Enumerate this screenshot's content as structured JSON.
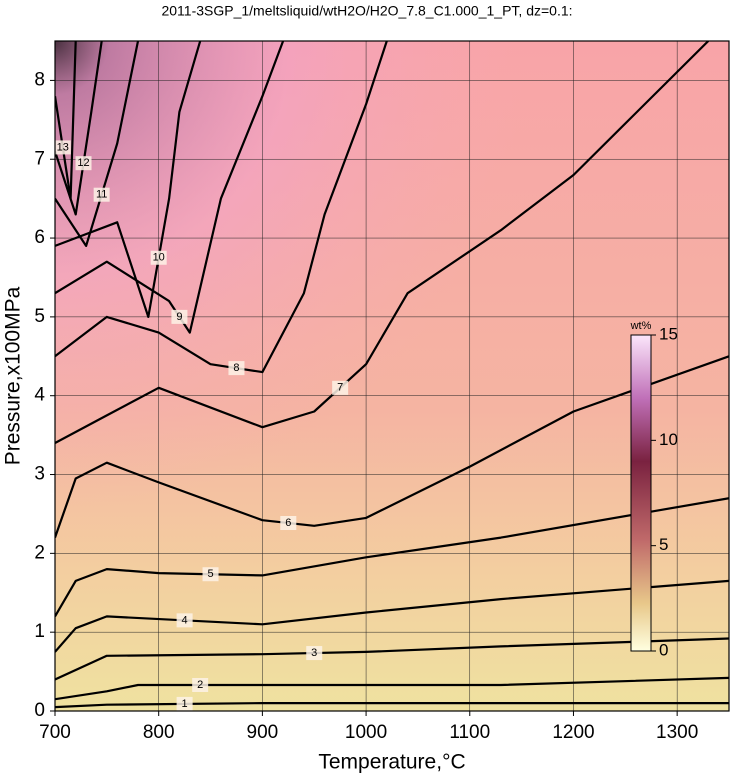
{
  "chart_data": {
    "type": "contour",
    "title": "2011-3SGP_1/meltsliquid/wtH2O/H2O_7.8_C1.000_1_PT, dz=0.1:",
    "x_label": "Temperature,°C",
    "y_label": "Pressure,x100MPa",
    "xlim": [
      700,
      1350
    ],
    "ylim": [
      0,
      8.5
    ],
    "xticks": [
      700,
      800,
      900,
      1000,
      1100,
      1200,
      1300
    ],
    "yticks": [
      0,
      1,
      2,
      3,
      4,
      5,
      6,
      7,
      8
    ],
    "grid": true,
    "color": "#000000",
    "colorbar": {
      "label": "wt%",
      "lim": [
        0,
        15
      ],
      "ticks": [
        0,
        5,
        10,
        15
      ]
    },
    "series": [
      {
        "name": "1",
        "x": [
          700,
          750,
          900,
          1130,
          1350
        ],
        "y": [
          0.05,
          0.08,
          0.1,
          0.1,
          0.1
        ]
      },
      {
        "name": "2",
        "x": [
          700,
          750,
          780,
          900,
          1130,
          1350
        ],
        "y": [
          0.15,
          0.25,
          0.33,
          0.33,
          0.33,
          0.42
        ]
      },
      {
        "name": "3",
        "x": [
          700,
          750,
          900,
          1000,
          1130,
          1350
        ],
        "y": [
          0.4,
          0.7,
          0.72,
          0.75,
          0.82,
          0.92
        ]
      },
      {
        "name": "4",
        "x": [
          700,
          720,
          750,
          900,
          1000,
          1130,
          1350
        ],
        "y": [
          0.75,
          1.05,
          1.2,
          1.1,
          1.25,
          1.42,
          1.65
        ]
      },
      {
        "name": "5",
        "x": [
          700,
          720,
          750,
          800,
          900,
          1000,
          1130,
          1350
        ],
        "y": [
          1.2,
          1.65,
          1.8,
          1.75,
          1.72,
          1.95,
          2.2,
          2.7
        ]
      },
      {
        "name": "6",
        "x": [
          700,
          720,
          750,
          800,
          900,
          950,
          1000,
          1100,
          1200,
          1350
        ],
        "y": [
          2.2,
          2.95,
          3.15,
          2.9,
          2.42,
          2.35,
          2.45,
          3.1,
          3.8,
          4.5
        ]
      },
      {
        "name": "7",
        "x": [
          700,
          750,
          800,
          900,
          950,
          1000,
          1040,
          1130,
          1200,
          1330
        ],
        "y": [
          3.4,
          3.75,
          4.1,
          3.6,
          3.8,
          4.4,
          5.3,
          6.1,
          6.8,
          8.5
        ]
      },
      {
        "name": "8",
        "x": [
          700,
          750,
          800,
          850,
          900,
          940,
          960,
          1000,
          1020
        ],
        "y": [
          4.5,
          5.0,
          4.8,
          4.4,
          4.3,
          5.3,
          6.3,
          7.7,
          8.5
        ]
      },
      {
        "name": "9",
        "x": [
          700,
          750,
          810,
          830,
          860,
          900,
          920
        ],
        "y": [
          5.3,
          5.7,
          5.2,
          4.8,
          6.5,
          7.8,
          8.5
        ]
      },
      {
        "name": "10",
        "x": [
          700,
          760,
          790,
          810,
          820,
          840
        ],
        "y": [
          5.9,
          6.2,
          5.0,
          6.5,
          7.6,
          8.5
        ]
      },
      {
        "name": "11",
        "x": [
          700,
          730,
          760,
          780
        ],
        "y": [
          6.5,
          5.9,
          7.2,
          8.5
        ]
      },
      {
        "name": "12",
        "x": [
          700,
          720,
          735,
          745
        ],
        "y": [
          7.1,
          6.3,
          7.6,
          8.5
        ]
      },
      {
        "name": "13",
        "x": [
          700,
          715,
          720
        ],
        "y": [
          7.8,
          6.5,
          8.5
        ]
      }
    ]
  }
}
